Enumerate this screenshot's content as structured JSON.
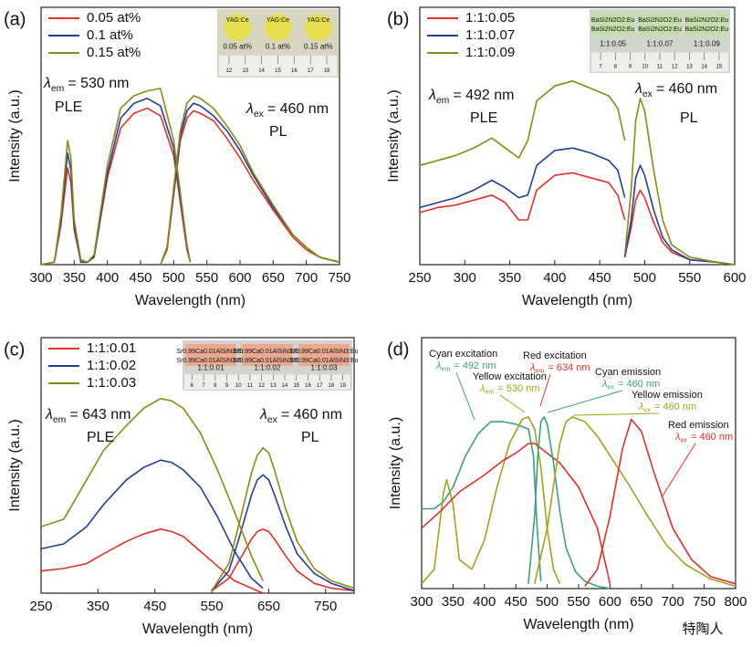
{
  "chart_data": [
    {
      "type": "line",
      "panel": "(a)",
      "xlabel": "Wavelength (nm)",
      "ylabel": "Intensity (a.u.)",
      "xlim": [
        300,
        750
      ],
      "xticks": [
        300,
        350,
        400,
        450,
        500,
        550,
        600,
        650,
        700,
        750
      ],
      "ylim": [
        0,
        100
      ],
      "legend": true,
      "series": [
        {
          "name": "0.05 at%",
          "color": "#e0302a",
          "ple": {
            "x": [
              300,
              320,
              330,
              340,
              345,
              350,
              360,
              370,
              380,
              400,
              420,
              440,
              460,
              480,
              500,
              510,
              520,
              525
            ],
            "values": [
              0,
              1,
              16,
              39,
              33,
              14,
              1,
              1,
              3,
              35,
              55,
              61,
              63,
              60,
              44,
              25,
              6,
              1
            ]
          },
          "pl": {
            "x": [
              480,
              490,
              500,
              510,
              520,
              530,
              540,
              560,
              580,
              600,
              620,
              650,
              680,
              700,
              720,
              750
            ],
            "values": [
              0,
              6,
              28,
              50,
              59,
              62,
              61,
              58,
              51,
              43,
              34,
              22,
              11,
              6,
              3,
              1
            ]
          }
        },
        {
          "name": "0.1 at%",
          "color": "#1f3f99",
          "ple": {
            "x": [
              300,
              320,
              330,
              340,
              345,
              350,
              360,
              370,
              380,
              400,
              420,
              440,
              460,
              480,
              500,
              510,
              520,
              525
            ],
            "values": [
              0,
              1,
              18,
              45,
              38,
              16,
              1,
              1,
              3,
              37,
              59,
              65,
              67,
              64,
              47,
              27,
              7,
              1
            ]
          },
          "pl": {
            "x": [
              480,
              490,
              500,
              510,
              520,
              530,
              540,
              560,
              580,
              600,
              620,
              650,
              680,
              700,
              720,
              750
            ],
            "values": [
              0,
              7,
              29,
              52,
              62,
              65,
              64,
              60,
              54,
              46,
              36,
              23,
              12,
              7,
              3,
              1
            ]
          }
        },
        {
          "name": "0.15 at%",
          "color": "#8a8a14",
          "ple": {
            "x": [
              300,
              320,
              330,
              340,
              345,
              350,
              360,
              370,
              380,
              400,
              420,
              440,
              460,
              480,
              500,
              510,
              520,
              525
            ],
            "values": [
              0,
              1,
              20,
              50,
              43,
              18,
              2,
              1,
              4,
              40,
              63,
              68,
              70,
              71,
              50,
              29,
              8,
              1
            ]
          },
          "pl": {
            "x": [
              480,
              490,
              500,
              510,
              520,
              530,
              540,
              560,
              580,
              600,
              620,
              650,
              680,
              700,
              720,
              750
            ],
            "values": [
              0,
              7,
              31,
              54,
              65,
              68,
              67,
              63,
              56,
              48,
              37,
              24,
              12,
              7,
              3,
              1
            ]
          }
        }
      ],
      "annotations": [
        {
          "lambda": "λ",
          "sub": "em",
          "text": "= 530 nm"
        },
        {
          "text": "PLE"
        },
        {
          "lambda": "λ",
          "sub": "ex",
          "text": "= 460 nm"
        },
        {
          "text": "PL"
        }
      ],
      "inset": {
        "sample": "YAG:Ce",
        "labels": [
          "0.05 at%",
          "0.1 at%",
          "0.15 at%"
        ],
        "ruler": [
          "12",
          "13",
          "14",
          "15",
          "16",
          "17",
          "18"
        ]
      }
    },
    {
      "type": "line",
      "panel": "(b)",
      "xlabel": "Wavelength (nm)",
      "ylabel": "Intensity (a.u.)",
      "xlim": [
        250,
        600
      ],
      "xticks": [
        250,
        300,
        350,
        400,
        450,
        500,
        550,
        600
      ],
      "ylim": [
        0,
        100
      ],
      "legend": true,
      "series": [
        {
          "name": "1:1:0.05",
          "color": "#e0302a",
          "ple": {
            "x": [
              250,
              270,
              290,
              310,
              330,
              345,
              360,
              370,
              380,
              400,
              420,
              440,
              460,
              470,
              478
            ],
            "values": [
              21,
              23,
              24,
              26,
              28,
              25,
              18,
              18,
              30,
              36,
              37,
              35,
              33,
              28,
              18
            ]
          },
          "pl": {
            "x": [
              478,
              485,
              490,
              495,
              500,
              510,
              520,
              530,
              550,
              580,
              600
            ],
            "values": [
              3,
              15,
              26,
              30,
              27,
              17,
              9,
              5,
              2,
              1,
              0
            ]
          }
        },
        {
          "name": "1:1:0.07",
          "color": "#1f3f99",
          "ple": {
            "x": [
              250,
              270,
              290,
              310,
              330,
              345,
              360,
              370,
              380,
              400,
              420,
              440,
              460,
              470,
              478
            ],
            "values": [
              23,
              25,
              27,
              30,
              34,
              31,
              27,
              28,
              40,
              46,
              47,
              45,
              42,
              38,
              27
            ]
          },
          "pl": {
            "x": [
              478,
              485,
              490,
              495,
              500,
              510,
              520,
              530,
              550,
              580,
              600
            ],
            "values": [
              3,
              18,
              35,
              40,
              36,
              22,
              11,
              6,
              2,
              1,
              0
            ]
          }
        },
        {
          "name": "1:1:0.09",
          "color": "#8a8a14",
          "ple": {
            "x": [
              250,
              270,
              290,
              310,
              330,
              345,
              360,
              370,
              380,
              400,
              420,
              440,
              460,
              470,
              478
            ],
            "values": [
              40,
              42,
              44,
              47,
              51,
              47,
              43,
              50,
              66,
              72,
              74,
              71,
              68,
              63,
              50
            ]
          },
          "pl": {
            "x": [
              478,
              485,
              490,
              495,
              500,
              510,
              520,
              530,
              550,
              580,
              600
            ],
            "values": [
              4,
              30,
              58,
              67,
              62,
              38,
              18,
              8,
              3,
              1,
              0
            ]
          }
        }
      ],
      "annotations": [
        {
          "lambda": "λ",
          "sub": "em",
          "text": "= 492 nm"
        },
        {
          "text": "PLE"
        },
        {
          "lambda": "λ",
          "sub": "ex",
          "text": "= 460 nm"
        },
        {
          "text": "PL"
        }
      ],
      "inset": {
        "sample": "BaSi2N2O2:Eu",
        "labels": [
          "1:1:0.05",
          "1:1:0.07",
          "1:1:0.09"
        ],
        "ruler": [
          "7",
          "8",
          "9",
          "10",
          "11",
          "12",
          "13",
          "14",
          "15"
        ]
      }
    },
    {
      "type": "line",
      "panel": "(c)",
      "xlabel": "Wavelength (nm)",
      "ylabel": "Intensity (a.u.)",
      "xlim": [
        250,
        800
      ],
      "xticks": [
        250,
        350,
        450,
        550,
        650,
        750
      ],
      "ylim": [
        0,
        100
      ],
      "legend": true,
      "series": [
        {
          "name": "1:1:0.01",
          "color": "#e0302a",
          "ple": {
            "x": [
              250,
              290,
              330,
              360,
              400,
              430,
              460,
              480,
              500,
              530,
              560,
              590,
              620,
              640
            ],
            "values": [
              9,
              10,
              12,
              16,
              21,
              24,
              26,
              25,
              23,
              17,
              11,
              5,
              2,
              0
            ]
          },
          "pl": {
            "x": [
              550,
              580,
              600,
              620,
              630,
              640,
              650,
              660,
              680,
              700,
              730,
              760,
              800
            ],
            "values": [
              1,
              6,
              14,
              22,
              25,
              26,
              25,
              22,
              15,
              9,
              4,
              2,
              1
            ]
          }
        },
        {
          "name": "1:1:0.02",
          "color": "#1f3f99",
          "ple": {
            "x": [
              250,
              290,
              330,
              360,
              400,
              430,
              460,
              480,
              500,
              530,
              560,
              590,
              620,
              640
            ],
            "values": [
              18,
              20,
              27,
              36,
              46,
              51,
              54,
              53,
              50,
              43,
              31,
              17,
              6,
              2
            ]
          },
          "pl": {
            "x": [
              550,
              580,
              600,
              620,
              630,
              640,
              650,
              660,
              680,
              700,
              730,
              760,
              800
            ],
            "values": [
              1,
              9,
              24,
              40,
              46,
              48,
              46,
              40,
              27,
              16,
              8,
              4,
              1
            ]
          }
        },
        {
          "name": "1:1:0.03",
          "color": "#8a8a14",
          "ple": {
            "x": [
              250,
              290,
              330,
              360,
              400,
              430,
              460,
              480,
              500,
              530,
              560,
              590,
              620,
              640
            ],
            "values": [
              27,
              30,
              46,
              58,
              68,
              75,
              79,
              78,
              75,
              65,
              50,
              33,
              15,
              5
            ]
          },
          "pl": {
            "x": [
              550,
              580,
              600,
              620,
              630,
              640,
              650,
              660,
              680,
              700,
              730,
              760,
              800
            ],
            "values": [
              1,
              12,
              30,
              49,
              56,
              59,
              57,
              50,
              34,
              21,
              10,
              5,
              2
            ]
          }
        }
      ],
      "annotations": [
        {
          "lambda": "λ",
          "sub": "em",
          "text": "= 643 nm"
        },
        {
          "text": "PLE"
        },
        {
          "lambda": "λ",
          "sub": "ex",
          "text": "= 460 nm"
        },
        {
          "text": "PL"
        }
      ],
      "inset": {
        "sample": "Sr0.99Ca0.01AlSiN3:Eu",
        "labels": [
          "1:1:0.01",
          "1:1:0.02",
          "1:1:0.03"
        ],
        "ruler": [
          "6",
          "7",
          "8",
          "9",
          "10",
          "11",
          "12",
          "13",
          "14",
          "15",
          "16",
          "17",
          "18",
          "19"
        ]
      }
    },
    {
      "type": "line",
      "panel": "(d)",
      "xlabel": "Wavelength (nm)",
      "ylabel": "Intensity (a.u.)",
      "xlim": [
        300,
        800
      ],
      "xticks": [
        300,
        350,
        400,
        450,
        500,
        550,
        600,
        650,
        700,
        750,
        800
      ],
      "ylim": [
        0,
        100
      ],
      "legend": false,
      "series": [
        {
          "name": "Cyan excitation",
          "lambda": "λ",
          "sub": "em",
          "label": "= 492 nm",
          "color": "#3aa17e",
          "x": [
            300,
            320,
            335,
            350,
            370,
            390,
            410,
            430,
            450,
            470,
            478,
            484,
            490
          ],
          "values": [
            33,
            33,
            36,
            42,
            55,
            64,
            69,
            69,
            68,
            66,
            55,
            25,
            3
          ]
        },
        {
          "name": "Yellow excitation",
          "lambda": "λ",
          "sub": "em",
          "label": "= 530 nm",
          "color": "#a3a21a",
          "x": [
            300,
            320,
            335,
            340,
            350,
            360,
            380,
            400,
            420,
            440,
            460,
            470,
            480,
            490,
            500,
            510,
            520
          ],
          "values": [
            2,
            8,
            40,
            45,
            35,
            12,
            8,
            20,
            42,
            60,
            70,
            71,
            66,
            50,
            25,
            8,
            2
          ]
        },
        {
          "name": "Red excitation",
          "lambda": "λ",
          "sub": "em",
          "label": "= 634 nm",
          "color": "#e0302a",
          "x": [
            300,
            330,
            360,
            400,
            430,
            450,
            470,
            480,
            490,
            500,
            520,
            550,
            580,
            600
          ],
          "values": [
            25,
            32,
            40,
            47,
            53,
            56,
            60,
            60,
            58,
            56,
            52,
            42,
            25,
            2
          ]
        },
        {
          "name": "Cyan emission",
          "lambda": "λ",
          "sub": "ex",
          "label": "= 460 nm",
          "color": "#3aa17e",
          "x": [
            470,
            480,
            485,
            490,
            495,
            500,
            510,
            520,
            530,
            545,
            560,
            580,
            600
          ],
          "values": [
            2,
            30,
            55,
            69,
            71,
            68,
            52,
            32,
            17,
            7,
            3,
            1,
            0
          ]
        },
        {
          "name": "Yellow emission",
          "lambda": "λ",
          "sub": "ex",
          "label": "= 460 nm",
          "color": "#a3a21a",
          "x": [
            480,
            500,
            520,
            530,
            540,
            560,
            580,
            600,
            630,
            660,
            690,
            720,
            760,
            800
          ],
          "values": [
            2,
            25,
            60,
            69,
            71,
            69,
            63,
            55,
            43,
            30,
            18,
            10,
            4,
            1
          ]
        },
        {
          "name": "Red emission",
          "lambda": "λ",
          "sub": "ex",
          "label": "= 460 nm",
          "color": "#e0302a",
          "x": [
            560,
            580,
            600,
            620,
            634,
            650,
            670,
            700,
            730,
            760,
            800
          ],
          "values": [
            1,
            8,
            30,
            58,
            70,
            65,
            48,
            25,
            12,
            5,
            2
          ]
        }
      ]
    }
  ],
  "watermark": "特陶人"
}
